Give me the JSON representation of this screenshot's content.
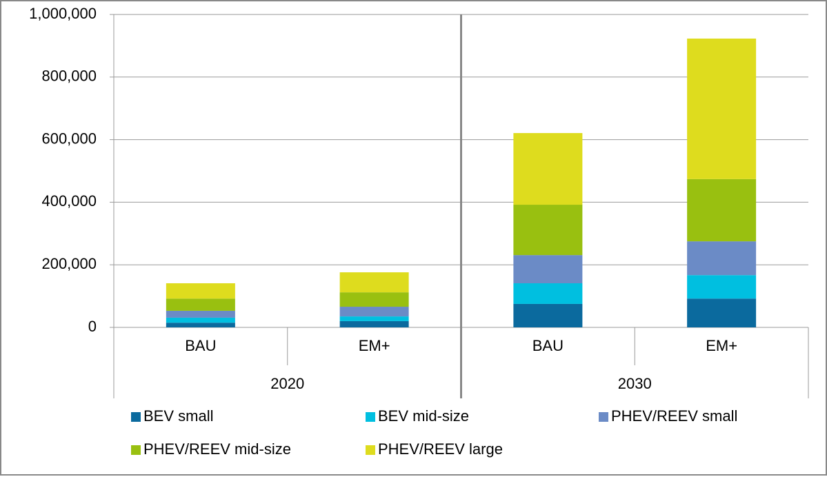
{
  "chart_data": {
    "type": "stacked_bar",
    "categories": [
      "BAU",
      "EM+",
      "BAU",
      "EM+"
    ],
    "group_labels": [
      "2020",
      "2030"
    ],
    "series": [
      {
        "name": "BEV small",
        "color": "#0b6a9e",
        "values": [
          15000,
          20000,
          75000,
          92000
        ]
      },
      {
        "name": "BEV mid-size",
        "color": "#00bfe0",
        "values": [
          16000,
          15000,
          66000,
          75000
        ]
      },
      {
        "name": "PHEV/REEV small",
        "color": "#6b8bc6",
        "values": [
          22000,
          31000,
          90000,
          108000
        ]
      },
      {
        "name": "PHEV/REEV mid-size",
        "color": "#99c010",
        "values": [
          39000,
          46000,
          161000,
          199000
        ]
      },
      {
        "name": "PHEV/REEV large",
        "color": "#dedc1e",
        "values": [
          49000,
          64000,
          229000,
          449000
        ]
      }
    ],
    "ylim": [
      0,
      1000000
    ],
    "yticks": [
      0,
      {
        "value": 200000,
        "label": "200,000"
      },
      {
        "value": 400000,
        "label": "400,000"
      },
      {
        "value": 600000,
        "label": "600,000"
      },
      {
        "value": 800000,
        "label": "800,000"
      },
      {
        "value": 1000000,
        "label": "1,000,000"
      }
    ],
    "grid": true,
    "legend": "bottom"
  }
}
